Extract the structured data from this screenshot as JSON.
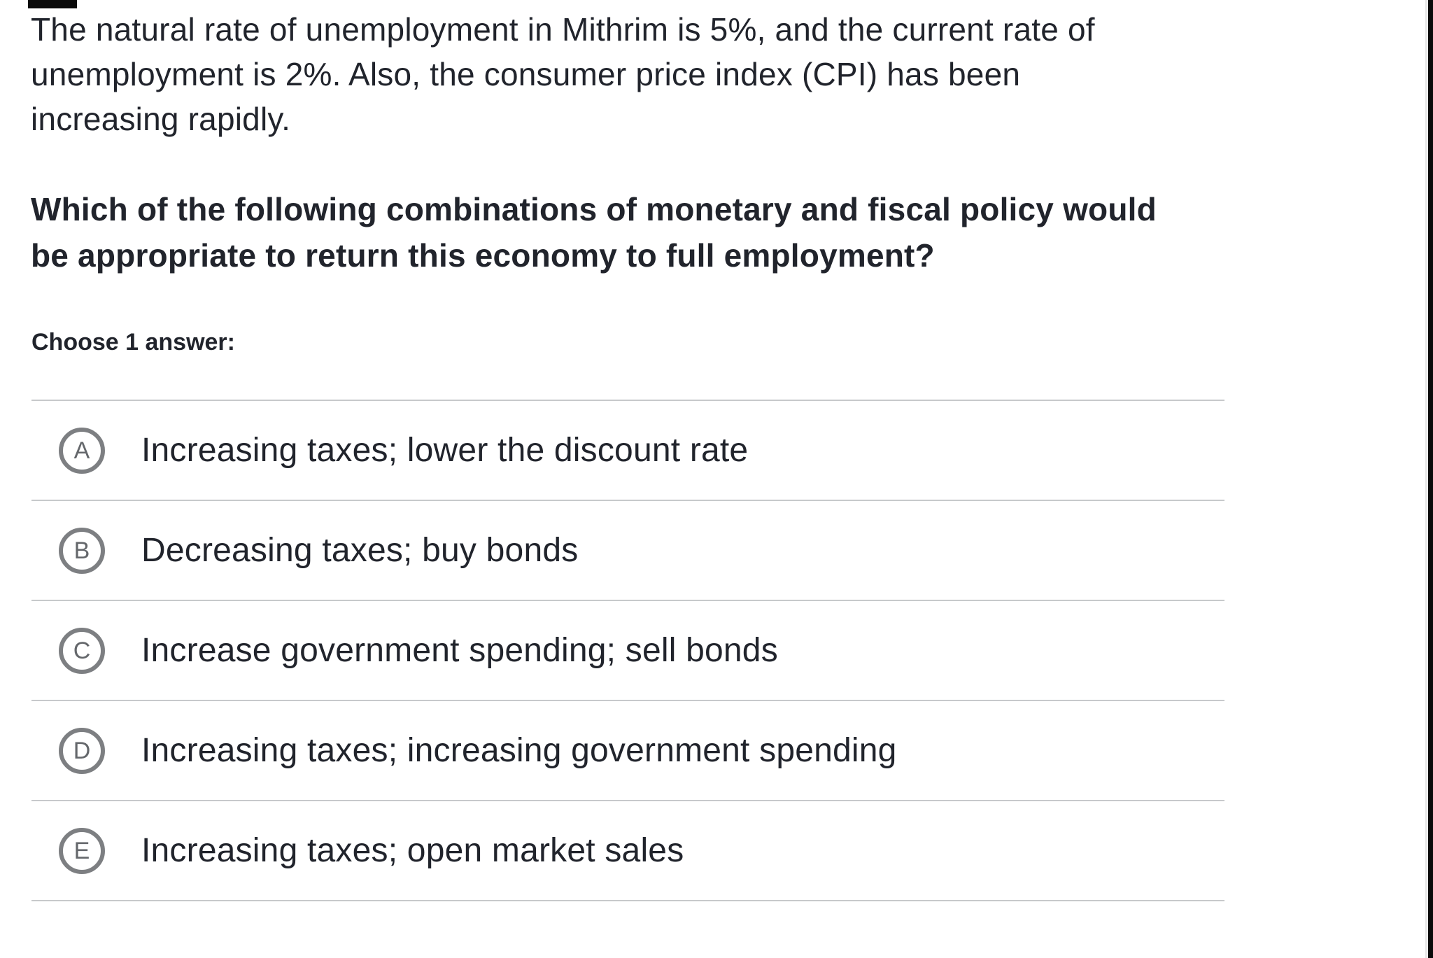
{
  "page": {
    "background": "#ffffff",
    "text_color": "#21242c",
    "divider_color": "#c7c9cb",
    "radio_ring_color": "#7d7f82",
    "radio_letter_color": "#64676b",
    "screen_edge_color": "#0a0a0a"
  },
  "passage": {
    "lines": [
      "The natural rate of unemployment in Mithrim is 5%, and the current rate of",
      "unemployment is 2%. Also, the consumer price index (CPI) has been",
      "increasing rapidly."
    ]
  },
  "question": {
    "lines": [
      "Which of the following combinations of monetary and fiscal policy would",
      "be appropriate to return this economy to full employment?"
    ]
  },
  "answer_section": {
    "prompt": "Choose 1 answer:"
  },
  "choices": [
    {
      "letter": "A",
      "text": "Increasing taxes; lower the discount rate"
    },
    {
      "letter": "B",
      "text": "Decreasing taxes; buy bonds"
    },
    {
      "letter": "C",
      "text": "Increase government spending; sell bonds"
    },
    {
      "letter": "D",
      "text": "Increasing taxes; increasing government spending"
    },
    {
      "letter": "E",
      "text": "Increasing taxes; open market sales"
    }
  ]
}
